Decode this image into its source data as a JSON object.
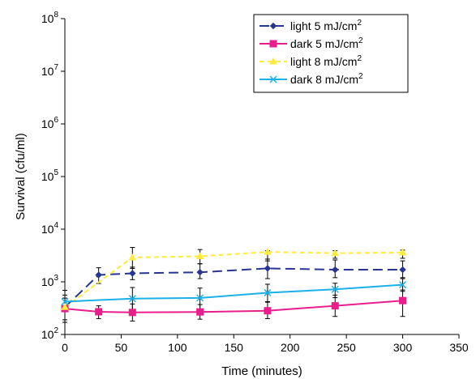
{
  "chart_data": {
    "type": "line",
    "xlabel": "Time (minutes)",
    "ylabel": "Survival (cfu/ml)",
    "xlim": [
      0,
      350
    ],
    "x_ticks": [
      0,
      50,
      100,
      150,
      200,
      250,
      300,
      350
    ],
    "y_scale": "log",
    "ylim": [
      100,
      100000000
    ],
    "y_ticks": [
      {
        "value": 100,
        "base": "10",
        "exp": "2"
      },
      {
        "value": 1000,
        "base": "10",
        "exp": "3"
      },
      {
        "value": 10000,
        "base": "10",
        "exp": "4"
      },
      {
        "value": 100000,
        "base": "10",
        "exp": "5"
      },
      {
        "value": 1000000,
        "base": "10",
        "exp": "6"
      },
      {
        "value": 10000000,
        "base": "10",
        "exp": "7"
      },
      {
        "value": 100000000,
        "base": "10",
        "exp": "8"
      }
    ],
    "grid": false,
    "legend_position": "top-right",
    "series": [
      {
        "name": "light 5 mJ/cm",
        "name_sup": "2",
        "color": "#283593",
        "line_style": "long-dash",
        "marker": "diamond",
        "points": [
          {
            "x": 0,
            "y": 330,
            "err_lo": 170,
            "err_hi": 690
          },
          {
            "x": 30,
            "y": 1350,
            "err_lo": 930,
            "err_hi": 1850
          },
          {
            "x": 60,
            "y": 1450,
            "err_lo": 1100,
            "err_hi": 1900
          },
          {
            "x": 120,
            "y": 1520,
            "err_lo": 1150,
            "err_hi": 2200
          },
          {
            "x": 180,
            "y": 1800,
            "err_lo": 1150,
            "err_hi": 2700
          },
          {
            "x": 240,
            "y": 1700,
            "err_lo": 1200,
            "err_hi": 2600
          },
          {
            "x": 300,
            "y": 1700,
            "err_lo": 1200,
            "err_hi": 2500
          }
        ]
      },
      {
        "name": "dark 5 mJ/cm",
        "name_sup": "2",
        "color": "#e91e8c",
        "line_style": "solid",
        "marker": "square",
        "points": [
          {
            "x": 0,
            "y": 310,
            "err_lo": 190,
            "err_hi": 490
          },
          {
            "x": 30,
            "y": 270,
            "err_lo": 200,
            "err_hi": 350
          },
          {
            "x": 60,
            "y": 262,
            "err_lo": 180,
            "err_hi": 380
          },
          {
            "x": 120,
            "y": 268,
            "err_lo": 195,
            "err_hi": 370
          },
          {
            "x": 180,
            "y": 282,
            "err_lo": 200,
            "err_hi": 420
          },
          {
            "x": 240,
            "y": 350,
            "err_lo": 220,
            "err_hi": 560
          },
          {
            "x": 300,
            "y": 440,
            "err_lo": 220,
            "err_hi": 700
          }
        ]
      },
      {
        "name": "light 8 mJ/cm",
        "name_sup": "2",
        "color": "#ffeb3b",
        "line_style": "dash",
        "marker": "triangle",
        "points": [
          {
            "x": 0,
            "y": 330
          },
          {
            "x": 60,
            "y": 2900,
            "err_lo": 1800,
            "err_hi": 4500
          },
          {
            "x": 120,
            "y": 3050,
            "err_lo": 2200,
            "err_hi": 4100
          },
          {
            "x": 180,
            "y": 3700,
            "err_lo": 2500,
            "err_hi": 3900
          },
          {
            "x": 240,
            "y": 3500,
            "err_lo": 2800,
            "err_hi": 3900
          },
          {
            "x": 300,
            "y": 3600,
            "err_lo": 2800,
            "err_hi": 4000
          }
        ]
      },
      {
        "name": "dark 8 mJ/cm",
        "name_sup": "2",
        "color": "#1ab0e8",
        "line_style": "solid",
        "marker": "x",
        "points": [
          {
            "x": 0,
            "y": 420,
            "err_lo": 330,
            "err_hi": 560
          },
          {
            "x": 60,
            "y": 480,
            "err_lo": 240,
            "err_hi": 780
          },
          {
            "x": 120,
            "y": 495,
            "err_lo": 300,
            "err_hi": 760
          },
          {
            "x": 180,
            "y": 620,
            "err_lo": 410,
            "err_hi": 900
          },
          {
            "x": 240,
            "y": 720,
            "err_lo": 500,
            "err_hi": 940
          },
          {
            "x": 300,
            "y": 880,
            "err_lo": 660,
            "err_hi": 1150
          }
        ]
      }
    ]
  }
}
